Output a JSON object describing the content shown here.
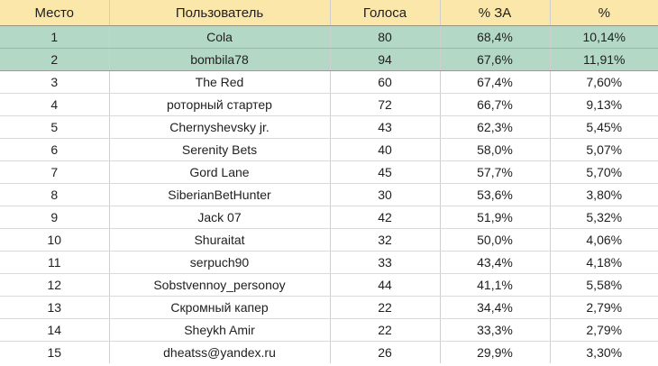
{
  "table": {
    "columns": [
      {
        "key": "place",
        "label": "Место"
      },
      {
        "key": "user",
        "label": "Пользователь"
      },
      {
        "key": "votes",
        "label": "Голоса"
      },
      {
        "key": "pct_for",
        "label": "% ЗА"
      },
      {
        "key": "pct_total",
        "label": "%"
      }
    ],
    "rows": [
      {
        "place": "1",
        "user": "Cola",
        "votes": "80",
        "pct_for": "68,4%",
        "pct_total": "10,14%",
        "highlighted": true
      },
      {
        "place": "2",
        "user": "bombila78",
        "votes": "94",
        "pct_for": "67,6%",
        "pct_total": "11,91%",
        "highlighted": true
      },
      {
        "place": "3",
        "user": "The Red",
        "votes": "60",
        "pct_for": "67,4%",
        "pct_total": "7,60%",
        "highlighted": false
      },
      {
        "place": "4",
        "user": "роторный стартер",
        "votes": "72",
        "pct_for": "66,7%",
        "pct_total": "9,13%",
        "highlighted": false
      },
      {
        "place": "5",
        "user": "Chernyshevsky jr.",
        "votes": "43",
        "pct_for": "62,3%",
        "pct_total": "5,45%",
        "highlighted": false
      },
      {
        "place": "6",
        "user": "Serenity Bets",
        "votes": "40",
        "pct_for": "58,0%",
        "pct_total": "5,07%",
        "highlighted": false
      },
      {
        "place": "7",
        "user": "Gord Lane",
        "votes": "45",
        "pct_for": "57,7%",
        "pct_total": "5,70%",
        "highlighted": false
      },
      {
        "place": "8",
        "user": "SiberianBetHunter",
        "votes": "30",
        "pct_for": "53,6%",
        "pct_total": "3,80%",
        "highlighted": false
      },
      {
        "place": "9",
        "user": "Jack 07",
        "votes": "42",
        "pct_for": "51,9%",
        "pct_total": "5,32%",
        "highlighted": false
      },
      {
        "place": "10",
        "user": "Shuraitat",
        "votes": "32",
        "pct_for": "50,0%",
        "pct_total": "4,06%",
        "highlighted": false
      },
      {
        "place": "11",
        "user": "serpuch90",
        "votes": "33",
        "pct_for": "43,4%",
        "pct_total": "4,18%",
        "highlighted": false
      },
      {
        "place": "12",
        "user": "Sobstvennoy_personoy",
        "votes": "44",
        "pct_for": "41,1%",
        "pct_total": "5,58%",
        "highlighted": false
      },
      {
        "place": "13",
        "user": "Скромный капер",
        "votes": "22",
        "pct_for": "34,4%",
        "pct_total": "2,79%",
        "highlighted": false
      },
      {
        "place": "14",
        "user": "Sheykh Amir",
        "votes": "22",
        "pct_for": "33,3%",
        "pct_total": "2,79%",
        "highlighted": false
      },
      {
        "place": "15",
        "user": "dheatss@yandex.ru",
        "votes": "26",
        "pct_for": "29,9%",
        "pct_total": "3,30%",
        "highlighted": false
      }
    ],
    "colors": {
      "header_bg": "#FBE7A9",
      "highlight_bg": "#B3D8C6",
      "row_bg": "#FFFFFF",
      "grid_line": "#CFCFCF",
      "text": "#1F1F1F"
    }
  }
}
